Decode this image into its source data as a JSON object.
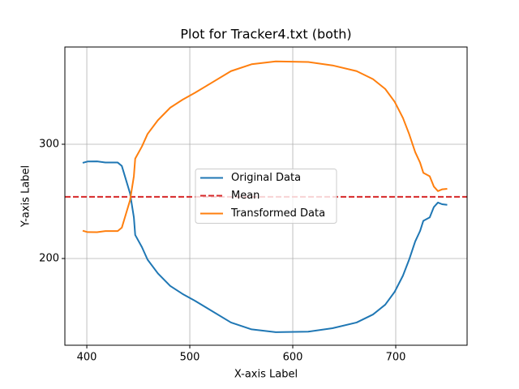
{
  "chart_data": {
    "type": "line",
    "title": "Plot for Tracker4.txt (both)",
    "xlabel": "X-axis Label",
    "ylabel": "Y-axis Label",
    "x": [
      396,
      400.8,
      410,
      418,
      430,
      434,
      438,
      442,
      445.7,
      447,
      453.5,
      459,
      469,
      481,
      493,
      505,
      520.5,
      540,
      560,
      583.5,
      615,
      638.6,
      662,
      677.9,
      689.8,
      699,
      707,
      713,
      718.9,
      723.6,
      726.8,
      733,
      737,
      741,
      745,
      750
    ],
    "series": [
      {
        "name": "Original Data",
        "color": "#1f77b4",
        "values": [
          283.7,
          284.9,
          285,
          284,
          284,
          281,
          269,
          257,
          236,
          220.6,
          210,
          199,
          187,
          176,
          169,
          163,
          154.6,
          144,
          138,
          135.5,
          136,
          139,
          144,
          151,
          159.6,
          170.9,
          185,
          199,
          214.9,
          224,
          233,
          236,
          245,
          249,
          247.5,
          247
        ]
      },
      {
        "name": "Mean",
        "color": "#d62728",
        "hline": 254,
        "dashed": true
      },
      {
        "name": "Transformed Data",
        "color": "#ff7f0e",
        "values": [
          224.3,
          223.1,
          223,
          224,
          224,
          227,
          239,
          251,
          272,
          287.4,
          298,
          309,
          321,
          332,
          339,
          345,
          353.4,
          364,
          370,
          372.5,
          372,
          369,
          364,
          357,
          348.4,
          337.1,
          323,
          309,
          293.1,
          284,
          275,
          272,
          263,
          259,
          260.5,
          261
        ]
      }
    ],
    "xlim": [
      378.7,
      769.3
    ],
    "ylim": [
      124.1,
      385.1
    ],
    "xticks": [
      400,
      500,
      600,
      700
    ],
    "yticks": [
      200,
      300
    ],
    "grid": true,
    "legend": "center"
  }
}
